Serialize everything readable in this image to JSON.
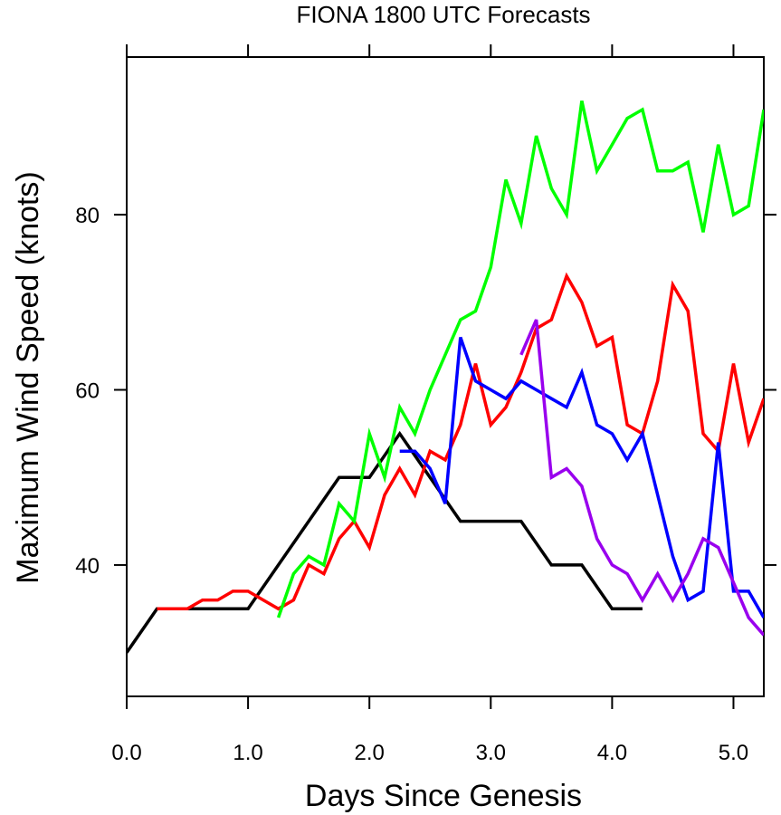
{
  "chart_data": {
    "type": "line",
    "title": "FIONA 1800 UTC Forecasts",
    "xlabel": "Days Since Genesis",
    "ylabel": "Maximum Wind Speed (knots)",
    "xlim": [
      0,
      5.25
    ],
    "ylim": [
      25,
      98
    ],
    "x_ticks": [
      0,
      1,
      2,
      3,
      4,
      5
    ],
    "x_tick_labels": [
      "0.0",
      "1.0",
      "2.0",
      "3.0",
      "4.0",
      "5.0"
    ],
    "y_ticks": [
      40,
      60,
      80
    ],
    "y_tick_labels": [
      "40",
      "60",
      "80"
    ],
    "grid": false,
    "series": [
      {
        "color": "#000000",
        "x": [
          0,
          0.25,
          0.5,
          0.75,
          1.0,
          1.25,
          1.5,
          1.75,
          2.0,
          2.25,
          2.5,
          2.75,
          3.0,
          3.25,
          3.5,
          3.75,
          4.0,
          4.25
        ],
        "y": [
          30,
          35,
          35,
          35,
          35,
          40,
          45,
          50,
          50,
          55,
          50,
          45,
          45,
          45,
          40,
          40,
          35,
          35
        ]
      },
      {
        "color": "#ff0000",
        "x": [
          0.25,
          0.375,
          0.5,
          0.625,
          0.75,
          0.875,
          1.0,
          1.125,
          1.25,
          1.375,
          1.5,
          1.625,
          1.75,
          1.875,
          2.0,
          2.125,
          2.25,
          2.375,
          2.5,
          2.625,
          2.75,
          2.875,
          3.0,
          3.125,
          3.25,
          3.375,
          3.5,
          3.625,
          3.75,
          3.875,
          4.0,
          4.125,
          4.25,
          4.375,
          4.5,
          4.625,
          4.75,
          4.875,
          5.0,
          5.125,
          5.25
        ],
        "y": [
          35,
          35,
          35,
          36,
          36,
          37,
          37,
          36,
          35,
          36,
          40,
          39,
          43,
          45,
          42,
          48,
          51,
          48,
          53,
          52,
          56,
          63,
          56,
          58,
          62,
          67,
          68,
          73,
          70,
          65,
          66,
          56,
          55,
          61,
          72,
          69,
          55,
          53,
          63,
          54,
          59
        ]
      },
      {
        "color": "#00ff00",
        "x": [
          1.25,
          1.375,
          1.5,
          1.625,
          1.75,
          1.875,
          2.0,
          2.125,
          2.25,
          2.375,
          2.5,
          2.625,
          2.75,
          2.875,
          3.0,
          3.125,
          3.25,
          3.375,
          3.5,
          3.625,
          3.75,
          3.875,
          4.0,
          4.125,
          4.25,
          4.375,
          4.5,
          4.625,
          4.75,
          4.875,
          5.0,
          5.125,
          5.25
        ],
        "y": [
          34,
          39,
          41,
          40,
          47,
          45,
          55,
          50,
          58,
          55,
          60,
          64,
          68,
          69,
          74,
          84,
          79,
          89,
          83,
          80,
          93,
          85,
          88,
          91,
          92,
          85,
          85,
          86,
          78,
          88,
          80,
          81,
          92
        ]
      },
      {
        "color": "#0000ff",
        "x": [
          2.25,
          2.375,
          2.5,
          2.625,
          2.75,
          2.875,
          3.0,
          3.125,
          3.25,
          3.375,
          3.5,
          3.625,
          3.75,
          3.875,
          4.0,
          4.125,
          4.25,
          4.375,
          4.5,
          4.625,
          4.75,
          4.875,
          5.0,
          5.125,
          5.25
        ],
        "y": [
          53,
          53,
          51,
          47,
          66,
          61,
          60,
          59,
          61,
          60,
          59,
          58,
          62,
          56,
          55,
          52,
          55,
          48,
          41,
          36,
          37,
          54,
          37,
          37,
          34
        ]
      },
      {
        "color": "#9900ee",
        "x": [
          3.25,
          3.375,
          3.5,
          3.625,
          3.75,
          3.875,
          4.0,
          4.125,
          4.25,
          4.375,
          4.5,
          4.625,
          4.75,
          4.875,
          5.0,
          5.125,
          5.25
        ],
        "y": [
          64,
          68,
          50,
          51,
          49,
          43,
          40,
          39,
          36,
          39,
          36,
          39,
          43,
          42,
          38,
          34,
          32
        ]
      }
    ]
  }
}
